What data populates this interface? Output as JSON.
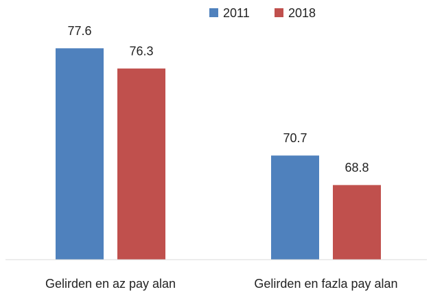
{
  "chart_data": {
    "type": "bar",
    "categories": [
      "Gelirden en az pay alan",
      "Gelirden en fazla pay alan"
    ],
    "series": [
      {
        "name": "2011",
        "color": "#4f81bd",
        "values": [
          77.6,
          70.7
        ]
      },
      {
        "name": "2018",
        "color": "#c0504d",
        "values": [
          76.3,
          68.8
        ]
      }
    ],
    "ylim": [
      64,
      80
    ],
    "legend": "top"
  }
}
